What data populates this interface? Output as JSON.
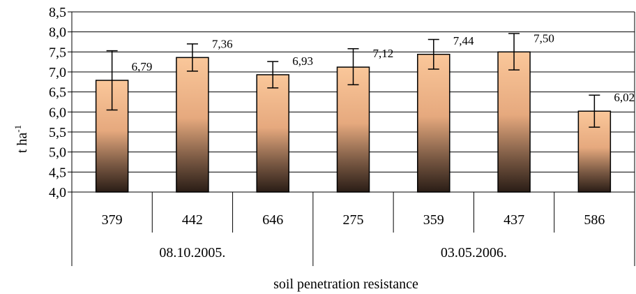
{
  "chart_data": {
    "type": "bar",
    "categories": [
      "379",
      "442",
      "646",
      "275",
      "359",
      "437",
      "586"
    ],
    "groups": [
      {
        "label": "08.10.2005.",
        "count": 3
      },
      {
        "label": "03.05.2006.",
        "count": 4
      }
    ],
    "values": [
      6.79,
      7.36,
      6.93,
      7.12,
      7.44,
      7.5,
      6.02
    ],
    "data_labels": [
      "6,79",
      "7,36",
      "6,93",
      "7,12",
      "7,44",
      "7,50",
      "6,02"
    ],
    "error_low": [
      6.05,
      7.02,
      6.6,
      6.68,
      7.07,
      7.05,
      5.62
    ],
    "error_high": [
      7.53,
      7.7,
      7.26,
      7.58,
      7.81,
      7.96,
      6.42
    ],
    "ylim": [
      4.0,
      8.5
    ],
    "yticks": [
      4.0,
      4.5,
      5.0,
      5.5,
      6.0,
      6.5,
      7.0,
      7.5,
      8.0,
      8.5
    ],
    "ytick_labels": [
      "4,0",
      "4,5",
      "5,0",
      "5,5",
      "6,0",
      "6,5",
      "7,0",
      "7,5",
      "8,0",
      "8,5"
    ],
    "ylabel": "t ha",
    "ylabel_superscript": "-1",
    "xlabel": "soil penetration resistance",
    "grid": true,
    "bar_gradient": [
      "#fac79a",
      "#2a1d16"
    ]
  }
}
